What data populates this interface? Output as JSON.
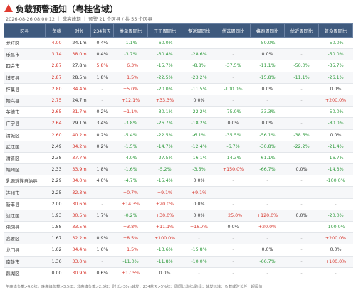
{
  "header": {
    "title": "负载预警通知（粤桂省域）",
    "subtitle": "2026-08-26 08:00:12 ｜ 非高峰期 ｜ 预警 21 个区县 / 共 55 个区县"
  },
  "table": {
    "columns": [
      "区县",
      "负载",
      "时长",
      "234蓝天",
      "推单周同比",
      "开工周同比",
      "专送周同比",
      "优选周同比",
      "蜂跑周同比",
      "优近周同比",
      "普众周同比"
    ],
    "rows": [
      [
        "龙圩区",
        "4.00",
        "24.1m",
        "0.4%",
        "-1.1%",
        "-60.0%",
        "-",
        "-",
        "-50.0%",
        "-",
        "-50.0%"
      ],
      [
        "乐昌市",
        "3.14",
        "38.0m",
        "0.4%",
        "-3.7%",
        "-30.4%",
        "-28.6%",
        "-",
        "0.0%",
        "-",
        "-50.0%"
      ],
      [
        "四会市",
        "2.87",
        "27.8m",
        "5.8%",
        "+6.3%",
        "-15.7%",
        "-8.8%",
        "-37.5%",
        "-11.1%",
        "-50.0%",
        "-35.7%"
      ],
      [
        "博罗县",
        "2.87",
        "28.5m",
        "1.8%",
        "+1.5%",
        "-22.5%",
        "-23.2%",
        "-",
        "-15.8%",
        "-11.1%",
        "-26.1%"
      ],
      [
        "怀集县",
        "2.80",
        "34.4m",
        "-",
        "+5.0%",
        "-20.0%",
        "-11.5%",
        "-100.0%",
        "0.0%",
        "-",
        "0.0%"
      ],
      [
        "始兴县",
        "2.75",
        "24.7m",
        "-",
        "+12.1%",
        "+33.3%",
        "0.0%",
        "-",
        "-",
        "-",
        "+200.0%"
      ],
      [
        "英德市",
        "2.65",
        "31.7m",
        "0.2%",
        "+1.1%",
        "-30.1%",
        "-22.2%",
        "-75.0%",
        "-33.3%",
        "-",
        "-50.0%"
      ],
      [
        "广宁县",
        "2.64",
        "29.1m",
        "3.4%",
        "-3.8%",
        "-26.7%",
        "-18.2%",
        "0.0%",
        "0.0%",
        "-",
        "-80.0%"
      ],
      [
        "清城区",
        "2.60",
        "40.2m",
        "0.2%",
        "-5.4%",
        "-22.5%",
        "-6.1%",
        "-35.5%",
        "-56.1%",
        "-38.5%",
        "0.0%"
      ],
      [
        "武江区",
        "2.49",
        "34.2m",
        "0.2%",
        "-1.5%",
        "-14.7%",
        "-12.4%",
        "-6.7%",
        "-30.8%",
        "-22.2%",
        "-21.4%"
      ],
      [
        "清新区",
        "2.38",
        "37.7m",
        "-",
        "-4.0%",
        "-27.5%",
        "-16.1%",
        "-14.3%",
        "-61.1%",
        "-",
        "-16.7%"
      ],
      [
        "端州区",
        "2.33",
        "33.9m",
        "1.8%",
        "-1.6%",
        "-5.2%",
        "-3.5%",
        "+150.0%",
        "-66.7%",
        "0.0%",
        "-14.3%"
      ],
      [
        "乳源瑶族自治县",
        "2.29",
        "34.0m",
        "4.0%",
        "-4.7%",
        "-15.4%",
        "0.0%",
        "-",
        "-",
        "-",
        "-100.0%"
      ],
      [
        "连州市",
        "2.25",
        "32.3m",
        "-",
        "+0.7%",
        "+9.1%",
        "+9.1%",
        "-",
        "-",
        "-",
        "-"
      ],
      [
        "新丰县",
        "2.00",
        "30.6m",
        "-",
        "+14.3%",
        "+20.0%",
        "0.0%",
        "-",
        "-",
        "-",
        "-"
      ],
      [
        "浈江区",
        "1.93",
        "30.5m",
        "1.7%",
        "-0.2%",
        "+30.0%",
        "0.0%",
        "+25.0%",
        "+120.0%",
        "0.0%",
        "-20.0%"
      ],
      [
        "佛冈县",
        "1.88",
        "33.5m",
        "-",
        "+3.8%",
        "+11.1%",
        "+16.7%",
        "0.0%",
        "+20.0%",
        "-",
        "-100.0%"
      ],
      [
        "高要区",
        "1.67",
        "32.2m",
        "0.9%",
        "+8.5%",
        "+100.0%",
        "-",
        "-",
        "-",
        "-",
        "+200.0%"
      ],
      [
        "龙门县",
        "1.62",
        "34.4m",
        "1.6%",
        "+1.5%",
        "-13.6%",
        "-15.8%",
        "-",
        "0.0%",
        "-",
        "0.0%"
      ],
      [
        "南雄市",
        "1.36",
        "33.0m",
        "-",
        "-11.0%",
        "-11.8%",
        "-10.0%",
        "-",
        "-66.7%",
        "-",
        "+100.0%"
      ],
      [
        "鼎湖区",
        "0.00",
        "30.9m",
        "0.6%",
        "+17.5%",
        "0.0%",
        "-",
        "-",
        "-",
        "-",
        "-"
      ]
    ]
  },
  "footer": "午高峰负载>4.0红，晚高峰负载>3.5红；非高峰负载>2.5红；时长>30m触发；234蓝天>5%红；周同比涨红/跌绿；触发标准：负载或时长任一超阈值"
}
